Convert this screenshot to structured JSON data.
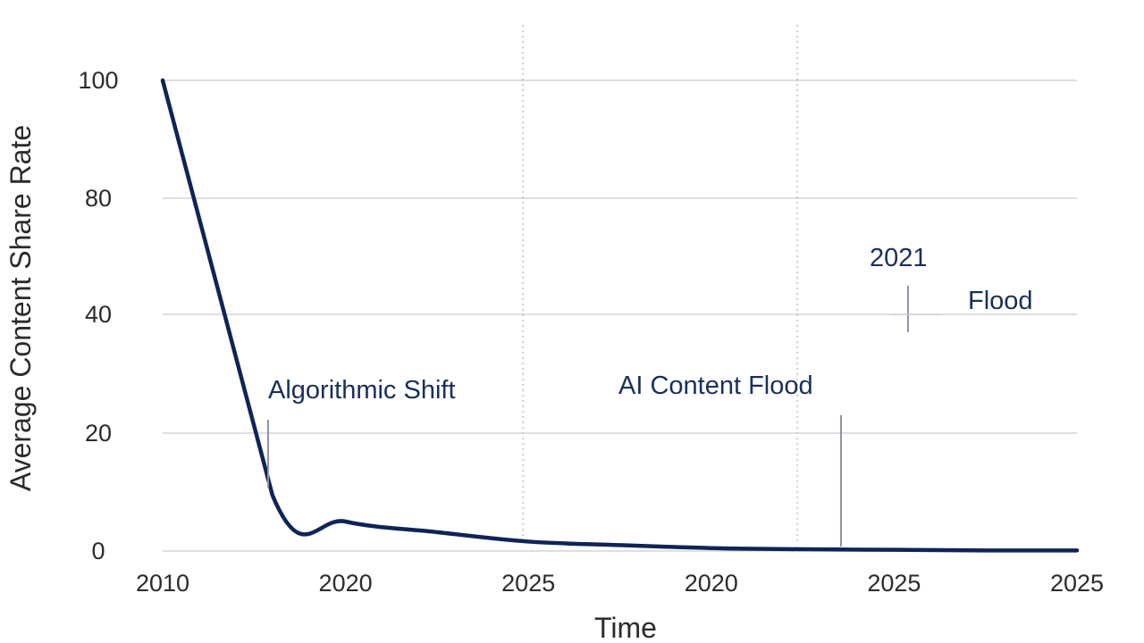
{
  "chart_data": {
    "type": "line",
    "title": "",
    "xlabel": "Time",
    "ylabel": "Average Content Share Rate",
    "x_tick_labels": [
      "2010",
      "2020",
      "2025",
      "2020",
      "2025",
      "2025"
    ],
    "y_ticks": [
      0,
      20,
      40,
      80,
      100
    ],
    "ylim": [
      0,
      100
    ],
    "grid": "horizontal",
    "line_color": "#0f2456",
    "series": [
      {
        "x": [
          0,
          0.6,
          1,
          1.5,
          2,
          2.5,
          3,
          3.5,
          4,
          4.5,
          5
        ],
        "values": [
          100,
          9.5,
          5,
          3.2,
          1.6,
          1.0,
          0.5,
          0.3,
          0.2,
          0.1,
          0.1
        ]
      }
    ],
    "annotations": [
      {
        "text": "Algorithmic Shift",
        "x": 0.6
      },
      {
        "text": "AI Content Flood",
        "x": 3.8
      },
      {
        "text": "2021",
        "x": 4.1
      },
      {
        "text": "Flood",
        "x": 4.55
      }
    ]
  }
}
